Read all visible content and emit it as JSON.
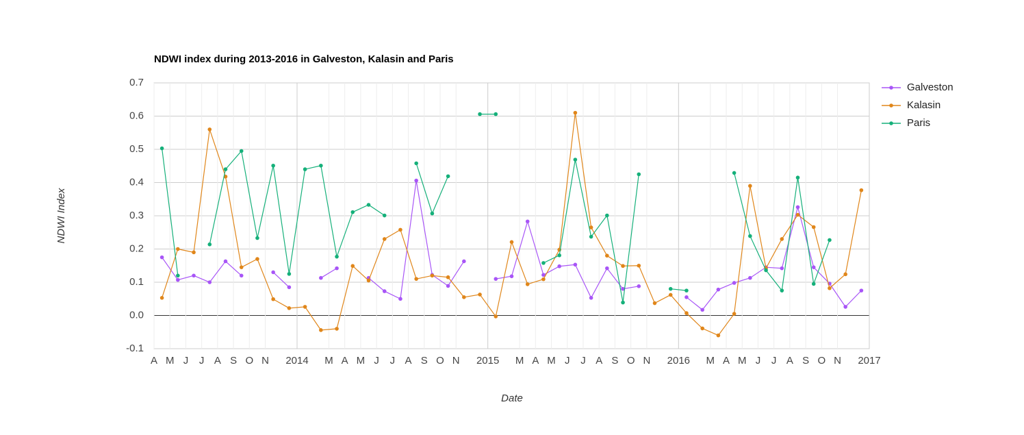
{
  "chart_data": {
    "type": "line",
    "title": "NDWI index during 2013-2016 in Galveston, Kalasin and Paris",
    "x_label": "Date",
    "y_label": "NDWI Index",
    "x": [
      "2013-04",
      "2013-05",
      "2013-06",
      "2013-07",
      "2013-08",
      "2013-09",
      "2013-10",
      "2013-11",
      "2013-12",
      "2014-01",
      "2014-02",
      "2014-03",
      "2014-04",
      "2014-05",
      "2014-06",
      "2014-07",
      "2014-08",
      "2014-09",
      "2014-10",
      "2014-11",
      "2014-12",
      "2015-01",
      "2015-02",
      "2015-03",
      "2015-04",
      "2015-05",
      "2015-06",
      "2015-07",
      "2015-08",
      "2015-09",
      "2015-10",
      "2015-11",
      "2015-12",
      "2016-01",
      "2016-02",
      "2016-03",
      "2016-04",
      "2016-05",
      "2016-06",
      "2016-07",
      "2016-08",
      "2016-09",
      "2016-10",
      "2016-11",
      "2016-12"
    ],
    "series": [
      {
        "name": "Galveston",
        "color": "#a855f7",
        "values": [
          0.175,
          0.107,
          0.12,
          0.1,
          0.163,
          0.12,
          null,
          0.13,
          0.085,
          null,
          0.113,
          0.142,
          null,
          0.113,
          0.073,
          0.05,
          0.406,
          0.122,
          0.089,
          0.163,
          null,
          0.11,
          0.118,
          0.283,
          0.122,
          0.148,
          0.153,
          0.053,
          0.142,
          0.08,
          0.088,
          null,
          null,
          0.055,
          0.017,
          0.078,
          0.098,
          0.113,
          0.145,
          0.142,
          0.326,
          0.145,
          0.096,
          0.026,
          0.075
        ]
      },
      {
        "name": "Kalasin",
        "color": "#e0861a",
        "values": [
          0.053,
          0.2,
          0.19,
          0.56,
          0.418,
          0.145,
          0.17,
          0.049,
          0.022,
          0.026,
          -0.044,
          -0.04,
          0.149,
          0.105,
          0.23,
          0.258,
          0.11,
          0.12,
          0.115,
          0.055,
          0.063,
          -0.003,
          0.221,
          0.094,
          0.109,
          0.198,
          0.61,
          0.265,
          0.18,
          0.149,
          0.15,
          0.037,
          0.062,
          0.007,
          -0.039,
          -0.06,
          0.005,
          0.39,
          0.142,
          0.23,
          0.303,
          0.266,
          0.082,
          0.124,
          0.377
        ]
      },
      {
        "name": "Paris",
        "color": "#15b07a",
        "values": [
          0.503,
          0.12,
          null,
          0.214,
          0.44,
          0.495,
          0.233,
          0.451,
          0.125,
          0.44,
          0.451,
          0.177,
          0.311,
          0.333,
          0.301,
          null,
          0.458,
          0.307,
          0.419,
          null,
          0.606,
          0.606,
          null,
          null,
          0.158,
          0.181,
          0.469,
          0.237,
          0.301,
          0.039,
          0.425,
          null,
          0.08,
          0.075,
          null,
          null,
          0.429,
          0.239,
          0.136,
          0.075,
          0.415,
          0.095,
          0.227,
          null,
          null
        ]
      }
    ],
    "xlim": [
      "2013-04",
      "2017-01"
    ],
    "xticks": [
      {
        "value": "2013-04",
        "label": "A"
      },
      {
        "value": "2013-05",
        "label": "M"
      },
      {
        "value": "2013-06",
        "label": "J"
      },
      {
        "value": "2013-07",
        "label": "J"
      },
      {
        "value": "2013-08",
        "label": "A"
      },
      {
        "value": "2013-09",
        "label": "S"
      },
      {
        "value": "2013-10",
        "label": "O"
      },
      {
        "value": "2013-11",
        "label": "N"
      },
      {
        "value": "2014-01",
        "label": "2014"
      },
      {
        "value": "2014-03",
        "label": "M"
      },
      {
        "value": "2014-04",
        "label": "A"
      },
      {
        "value": "2014-05",
        "label": "M"
      },
      {
        "value": "2014-06",
        "label": "J"
      },
      {
        "value": "2014-07",
        "label": "J"
      },
      {
        "value": "2014-08",
        "label": "A"
      },
      {
        "value": "2014-09",
        "label": "S"
      },
      {
        "value": "2014-10",
        "label": "O"
      },
      {
        "value": "2014-11",
        "label": "N"
      },
      {
        "value": "2015-01",
        "label": "2015"
      },
      {
        "value": "2015-03",
        "label": "M"
      },
      {
        "value": "2015-04",
        "label": "A"
      },
      {
        "value": "2015-05",
        "label": "M"
      },
      {
        "value": "2015-06",
        "label": "J"
      },
      {
        "value": "2015-07",
        "label": "J"
      },
      {
        "value": "2015-08",
        "label": "A"
      },
      {
        "value": "2015-09",
        "label": "S"
      },
      {
        "value": "2015-10",
        "label": "O"
      },
      {
        "value": "2015-11",
        "label": "N"
      },
      {
        "value": "2016-01",
        "label": "2016"
      },
      {
        "value": "2016-03",
        "label": "M"
      },
      {
        "value": "2016-04",
        "label": "A"
      },
      {
        "value": "2016-05",
        "label": "M"
      },
      {
        "value": "2016-06",
        "label": "J"
      },
      {
        "value": "2016-07",
        "label": "J"
      },
      {
        "value": "2016-08",
        "label": "A"
      },
      {
        "value": "2016-09",
        "label": "S"
      },
      {
        "value": "2016-10",
        "label": "O"
      },
      {
        "value": "2016-11",
        "label": "N"
      },
      {
        "value": "2017-01",
        "label": "2017"
      }
    ],
    "ylim": [
      -0.1,
      0.7
    ],
    "yticks": [
      -0.1,
      {
        "value": 0,
        "label": "0.0"
      },
      0.1,
      0.2,
      0.3,
      0.4,
      0.5,
      0.6,
      0.7
    ],
    "grid": true,
    "legend": "right"
  }
}
